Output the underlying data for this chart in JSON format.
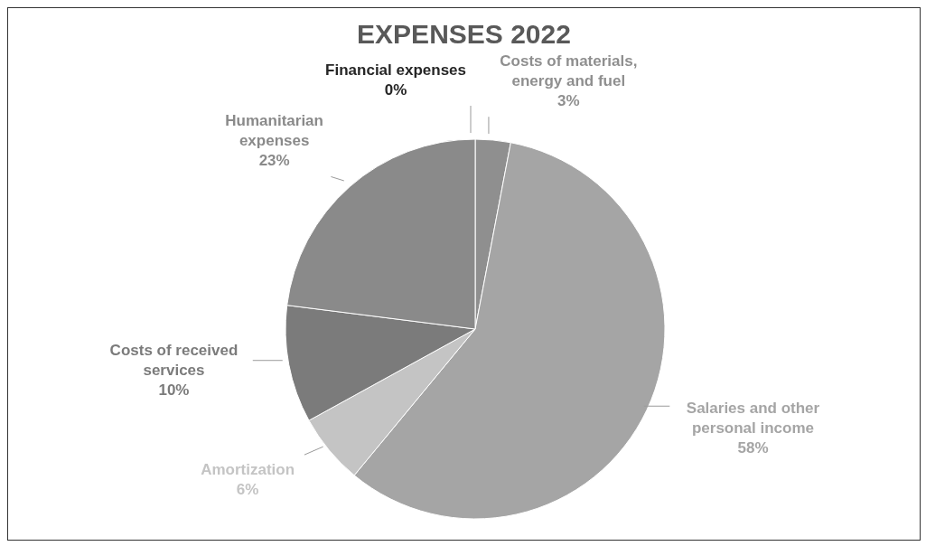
{
  "chart_data": {
    "type": "pie",
    "title": "EXPENSES 2022",
    "categories": [
      "Costs of materials, energy and fuel",
      "Salaries and other personal income",
      "Amortization",
      "Costs of received services",
      "Humanitarian expenses",
      "Financial expenses"
    ],
    "values": [
      3,
      58,
      6,
      10,
      23,
      0
    ],
    "value_labels": [
      "3%",
      "58%",
      "6%",
      "10%",
      "23%",
      "0%"
    ],
    "colors": [
      "#8f8f8f",
      "#a5a5a5",
      "#c4c4c4",
      "#7b7b7b",
      "#8a8a8a",
      "#262626"
    ]
  }
}
